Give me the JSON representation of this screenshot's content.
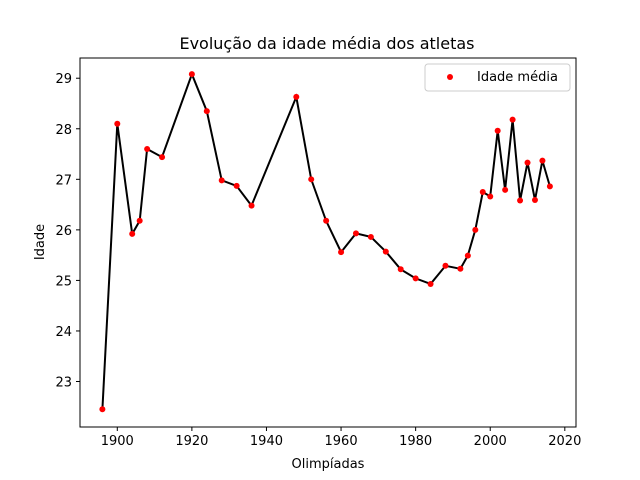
{
  "chart_data": {
    "type": "line",
    "title": "Evolução da idade média dos atletas",
    "xlabel": "Olimpíadas",
    "ylabel": "Idade",
    "xlim": [
      1890,
      2023
    ],
    "ylim": [
      22.1,
      29.4
    ],
    "xticks": [
      1900,
      1920,
      1940,
      1960,
      1980,
      2000,
      2020
    ],
    "yticks": [
      23,
      24,
      25,
      26,
      27,
      28,
      29
    ],
    "grid": false,
    "legend_position": "top-right",
    "line_color": "#000000",
    "marker_color": "#ff0000",
    "series": [
      {
        "name": "Idade média",
        "x": [
          1896,
          1900,
          1904,
          1906,
          1908,
          1912,
          1920,
          1924,
          1928,
          1932,
          1936,
          1948,
          1952,
          1956,
          1960,
          1964,
          1968,
          1972,
          1976,
          1980,
          1984,
          1988,
          1992,
          1994,
          1996,
          1998,
          2000,
          2002,
          2004,
          2006,
          2008,
          2010,
          2012,
          2014,
          2016
        ],
        "y": [
          22.45,
          28.1,
          25.92,
          26.18,
          27.6,
          27.44,
          29.08,
          28.35,
          26.98,
          26.87,
          26.48,
          28.63,
          27.0,
          26.18,
          25.56,
          25.93,
          25.86,
          25.57,
          25.22,
          25.04,
          24.93,
          25.29,
          25.23,
          25.49,
          26.0,
          26.75,
          26.66,
          27.96,
          26.79,
          28.18,
          26.58,
          27.33,
          26.59,
          27.37,
          26.86
        ]
      }
    ]
  }
}
